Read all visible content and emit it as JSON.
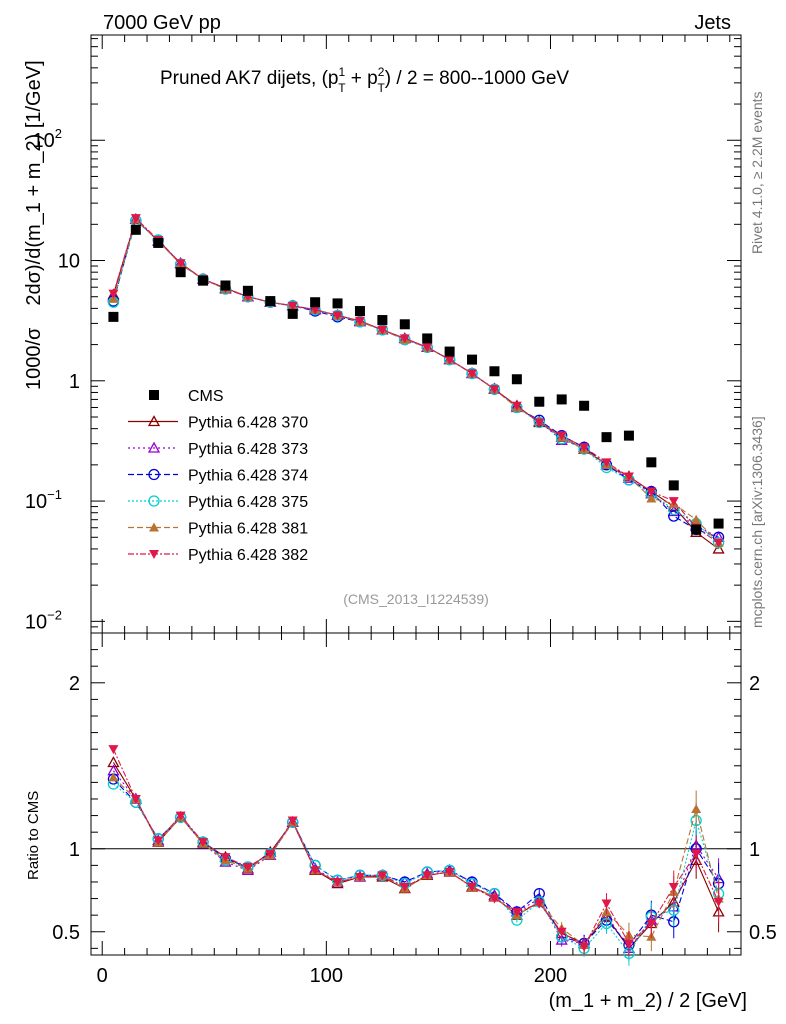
{
  "header": {
    "left": "7000 GeV pp",
    "right": "Jets"
  },
  "side_labels": {
    "rivet": "Rivet 4.1.0, ≥ 2.2M events",
    "mcplots": "mcplots.cern.ch [arXiv:1306.3436]"
  },
  "chart_data": {
    "type": "scatter",
    "title": "Pruned AK7 dijets, (p_T^1 + p_T^2) / 2 = 800--1000 GeV",
    "title_parts": {
      "prefix": "Pruned AK7 dijets, (p",
      "sup1": "1",
      "sub": "T",
      "plus": " + p",
      "sup2": "2",
      "suffix": ") / 2 = 800--1000 GeV"
    },
    "watermark": "(CMS_2013_I1224539)",
    "xlabel": "(m_1 + m_2) / 2 [GeV]",
    "ylabel": "1000/σ   2dσ)/d(m_1 + m_2) [1/GeV]",
    "ylabel_parts": {
      "a": "1000/σ",
      "b": "2dσ)/d(m_1 + m_2) [1/GeV]"
    },
    "ratio_ylabel": "Ratio to CMS",
    "xlim": [
      -5,
      285
    ],
    "ylim_main": [
      0.008,
      750
    ],
    "ylim_ratio": [
      0.36,
      2.3
    ],
    "scale_main": "log",
    "x_ticks": [
      "0",
      "100",
      "200"
    ],
    "x_tick_values": [
      0,
      100,
      200
    ],
    "y_ticks_main": [
      {
        "value": 0.01,
        "base": "10",
        "exp": "−2"
      },
      {
        "value": 0.1,
        "base": "10",
        "exp": "−1"
      },
      {
        "value": 1,
        "base": "1",
        "exp": ""
      },
      {
        "value": 10,
        "base": "10",
        "exp": ""
      },
      {
        "value": 100,
        "base": "10",
        "exp": "2"
      }
    ],
    "y_ticks_ratio": [
      {
        "value": 0.5,
        "label": "0.5"
      },
      {
        "value": 1,
        "label": "1"
      },
      {
        "value": 2,
        "label": "2"
      }
    ],
    "legend_position": "middle-left",
    "x": [
      5,
      15,
      25,
      35,
      45,
      55,
      65,
      75,
      85,
      95,
      105,
      115,
      125,
      135,
      145,
      155,
      165,
      175,
      185,
      195,
      205,
      215,
      225,
      235,
      245,
      255,
      265,
      275
    ],
    "reference": {
      "name": "CMS",
      "color": "#000000",
      "marker": "square",
      "values": [
        3.4,
        18.0,
        14.0,
        8.0,
        6.8,
        6.2,
        5.6,
        4.6,
        3.6,
        4.5,
        4.4,
        3.8,
        3.2,
        2.95,
        2.25,
        1.75,
        1.5,
        1.2,
        1.03,
        0.67,
        0.7,
        0.62,
        0.34,
        0.35,
        0.21,
        0.135,
        0.058,
        0.065
      ]
    },
    "series": [
      {
        "name": "Pythia 6.428 370",
        "color": "#8b0000",
        "marker": "triangle-open",
        "dash": "",
        "values": [
          5.2,
          22.0,
          14.5,
          9.5,
          7.0,
          5.9,
          5.0,
          4.5,
          4.2,
          3.9,
          3.5,
          3.15,
          2.65,
          2.25,
          1.9,
          1.5,
          1.15,
          0.85,
          0.62,
          0.45,
          0.34,
          0.27,
          0.2,
          0.16,
          0.12,
          0.09,
          0.055,
          0.04
        ],
        "ratio": [
          1.52,
          1.3,
          1.04,
          1.19,
          1.04,
          0.95,
          0.88,
          0.98,
          1.16,
          0.87,
          0.79,
          0.83,
          0.83,
          0.76,
          0.84,
          0.86,
          0.77,
          0.71,
          0.6,
          0.68,
          0.49,
          0.43,
          0.59,
          0.4,
          0.55,
          0.68,
          0.93,
          0.62
        ]
      },
      {
        "name": "Pythia 6.428 373",
        "color": "#9400d3",
        "marker": "triangle-open",
        "dash": "2,3",
        "values": [
          5.0,
          22.0,
          14.5,
          9.4,
          7.0,
          5.8,
          5.0,
          4.5,
          4.2,
          3.9,
          3.5,
          3.1,
          2.65,
          2.25,
          1.9,
          1.5,
          1.15,
          0.86,
          0.6,
          0.46,
          0.32,
          0.28,
          0.2,
          0.155,
          0.115,
          0.082,
          0.062,
          0.05
        ],
        "ratio": [
          1.47,
          1.3,
          1.05,
          1.19,
          1.03,
          0.92,
          0.87,
          0.96,
          1.16,
          0.88,
          0.8,
          0.83,
          0.84,
          0.8,
          0.85,
          0.87,
          0.8,
          0.72,
          0.62,
          0.7,
          0.45,
          0.43,
          0.6,
          0.4,
          0.57,
          0.65,
          1.02,
          0.82
        ]
      },
      {
        "name": "Pythia 6.428 374",
        "color": "#0000e0",
        "marker": "circle-open",
        "dash": "6,3",
        "values": [
          4.6,
          21.5,
          14.8,
          9.3,
          7.0,
          5.8,
          5.0,
          4.5,
          4.2,
          3.8,
          3.4,
          3.1,
          2.65,
          2.2,
          1.9,
          1.5,
          1.15,
          0.85,
          0.6,
          0.47,
          0.35,
          0.28,
          0.2,
          0.15,
          0.12,
          0.075,
          0.058,
          0.05
        ],
        "ratio": [
          1.42,
          1.28,
          1.06,
          1.19,
          1.04,
          0.94,
          0.89,
          0.97,
          1.16,
          0.9,
          0.81,
          0.84,
          0.84,
          0.8,
          0.86,
          0.87,
          0.8,
          0.73,
          0.62,
          0.73,
          0.47,
          0.43,
          0.57,
          0.42,
          0.6,
          0.56,
          1.0,
          0.79
        ]
      },
      {
        "name": "Pythia 6.428 375",
        "color": "#00d0d0",
        "marker": "circle-open",
        "dash": "2,2",
        "values": [
          4.5,
          21.5,
          14.8,
          9.3,
          7.0,
          5.8,
          5.0,
          4.5,
          4.2,
          3.9,
          3.5,
          3.1,
          2.65,
          2.2,
          1.9,
          1.5,
          1.15,
          0.85,
          0.6,
          0.45,
          0.33,
          0.27,
          0.19,
          0.15,
          0.115,
          0.085,
          0.065,
          0.045
        ],
        "ratio": [
          1.39,
          1.28,
          1.06,
          1.19,
          1.04,
          0.93,
          0.89,
          0.97,
          1.16,
          0.9,
          0.81,
          0.84,
          0.84,
          0.79,
          0.86,
          0.87,
          0.79,
          0.73,
          0.57,
          0.68,
          0.47,
          0.4,
          0.55,
          0.37,
          0.59,
          0.63,
          1.17,
          0.73
        ]
      },
      {
        "name": "Pythia 6.428 381",
        "color": "#b87333",
        "marker": "triangle-filled",
        "dash": "6,3",
        "values": [
          4.8,
          22.0,
          14.5,
          9.3,
          7.0,
          5.8,
          5.0,
          4.5,
          4.2,
          3.9,
          3.5,
          3.1,
          2.65,
          2.2,
          1.9,
          1.5,
          1.15,
          0.85,
          0.6,
          0.46,
          0.34,
          0.27,
          0.2,
          0.16,
          0.105,
          0.095,
          0.07,
          0.045
        ],
        "ratio": [
          1.43,
          1.3,
          1.04,
          1.19,
          1.03,
          0.93,
          0.88,
          0.96,
          1.16,
          0.87,
          0.8,
          0.83,
          0.84,
          0.76,
          0.84,
          0.86,
          0.77,
          0.71,
          0.6,
          0.68,
          0.52,
          0.42,
          0.62,
          0.48,
          0.47,
          0.74,
          1.24,
          0.7
        ]
      },
      {
        "name": "Pythia 6.428 382",
        "color": "#e0184a",
        "marker": "triangle-down-filled",
        "dash": "6,2,2,2",
        "values": [
          5.3,
          22.5,
          14.8,
          9.5,
          7.0,
          5.9,
          5.0,
          4.5,
          4.2,
          3.9,
          3.5,
          3.15,
          2.65,
          2.25,
          1.9,
          1.5,
          1.15,
          0.85,
          0.62,
          0.45,
          0.35,
          0.28,
          0.21,
          0.16,
          0.12,
          0.1,
          0.06,
          0.045
        ],
        "ratio": [
          1.6,
          1.3,
          1.05,
          1.2,
          1.04,
          0.95,
          0.89,
          0.97,
          1.17,
          0.87,
          0.8,
          0.83,
          0.84,
          0.77,
          0.84,
          0.86,
          0.77,
          0.7,
          0.62,
          0.67,
          0.5,
          0.41,
          0.67,
          0.43,
          0.55,
          0.77,
          0.97,
          0.68
        ]
      }
    ]
  }
}
